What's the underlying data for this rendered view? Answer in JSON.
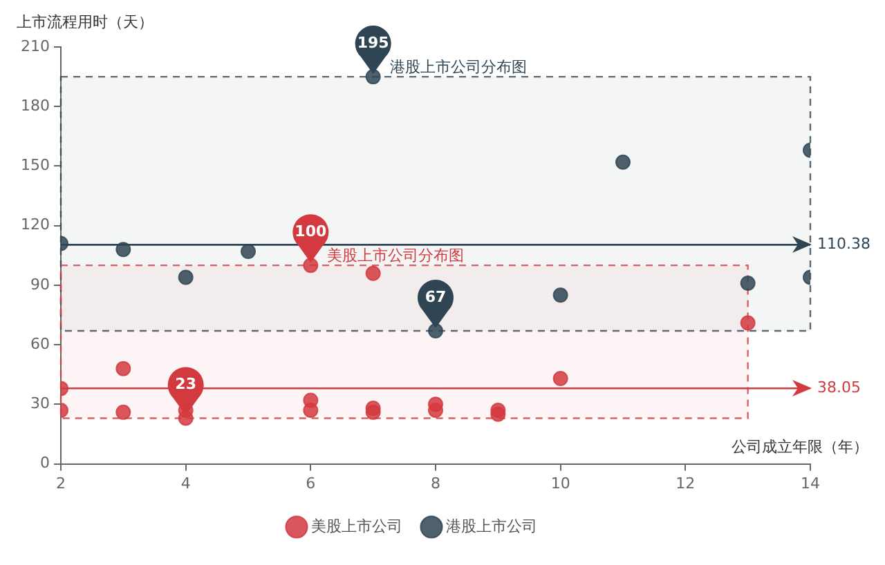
{
  "chart_data": {
    "type": "scatter",
    "xlabel": "公司成立年限（年）",
    "ylabel": "上市流程用时（天）",
    "xlim": [
      2,
      14
    ],
    "xticks": [
      2,
      4,
      6,
      8,
      10,
      12,
      14
    ],
    "ylim": [
      0,
      210
    ],
    "yticks": [
      0,
      30,
      60,
      90,
      120,
      150,
      180,
      210
    ],
    "grid": false,
    "legend": "bottom",
    "marker": "circle",
    "series": [
      {
        "name": "美股上市公司",
        "color": "#d23a3f",
        "x": [
          2,
          2,
          3,
          3,
          4,
          4,
          6,
          6,
          6,
          7,
          7,
          7,
          8,
          8,
          9,
          9,
          10,
          13
        ],
        "values": [
          38,
          27,
          48,
          26,
          23,
          27,
          100,
          32,
          27,
          96,
          28,
          26,
          30,
          27,
          27,
          25,
          43,
          71
        ]
      },
      {
        "name": "港股上市公司",
        "color": "#2f4554",
        "x": [
          2,
          3,
          4,
          5,
          7,
          8,
          10,
          11,
          13,
          14,
          14
        ],
        "values": [
          111,
          108,
          94,
          107,
          195,
          67,
          85,
          152,
          91,
          158,
          94
        ]
      }
    ],
    "ref_lines": [
      {
        "axis": "y",
        "value": 110.38,
        "label": "110.38",
        "color": "#2f4554"
      },
      {
        "axis": "y",
        "value": 38.05,
        "label": "38.05",
        "color": "#d23a3f"
      }
    ],
    "bands": [
      {
        "axis": "y",
        "from": 67,
        "to": 195,
        "label": "港股上市公司分布图",
        "color": "#2f4554"
      },
      {
        "axis": "y",
        "from": 23,
        "to": 100,
        "label": "美股上市公司分布图",
        "color": "#d23a3f"
      }
    ],
    "annotations": [
      {
        "text": "195",
        "x": 7,
        "y": 195
      },
      {
        "text": "67",
        "x": 8,
        "y": 67
      },
      {
        "text": "100",
        "x": 6,
        "y": 100
      },
      {
        "text": "23",
        "x": 4,
        "y": 23
      }
    ]
  }
}
